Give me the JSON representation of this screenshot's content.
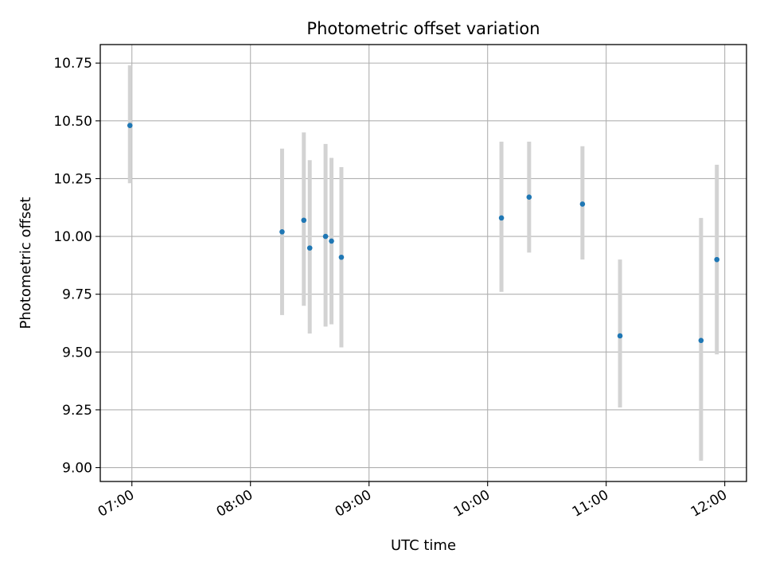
{
  "chart_data": {
    "type": "scatter",
    "title": "Photometric offset variation",
    "xlabel": "UTC time",
    "ylabel": "Photometric offset",
    "x_ticks": [
      "07:00",
      "08:00",
      "09:00",
      "10:00",
      "11:00",
      "12:00"
    ],
    "y_ticks": [
      "9.00",
      "9.25",
      "9.50",
      "9.75",
      "10.00",
      "10.25",
      "10.50",
      "10.75"
    ],
    "xlim": [
      "06:44",
      "12:11"
    ],
    "ylim": [
      8.94,
      10.83
    ],
    "grid": true,
    "x_tick_label_rotation": "30deg",
    "point_color": "#1f77b4",
    "errorbar_color": "#d3d3d3",
    "points": [
      {
        "time": "06:59",
        "offset": 10.48,
        "low": 10.23,
        "high": 10.74
      },
      {
        "time": "08:16",
        "offset": 10.02,
        "low": 9.66,
        "high": 10.38
      },
      {
        "time": "08:27",
        "offset": 10.07,
        "low": 9.7,
        "high": 10.45
      },
      {
        "time": "08:30",
        "offset": 9.95,
        "low": 9.58,
        "high": 10.33
      },
      {
        "time": "08:38",
        "offset": 10.0,
        "low": 9.61,
        "high": 10.4
      },
      {
        "time": "08:41",
        "offset": 9.98,
        "low": 9.62,
        "high": 10.34
      },
      {
        "time": "08:46",
        "offset": 9.91,
        "low": 9.52,
        "high": 10.3
      },
      {
        "time": "10:07",
        "offset": 10.08,
        "low": 9.76,
        "high": 10.41
      },
      {
        "time": "10:21",
        "offset": 10.17,
        "low": 9.93,
        "high": 10.41
      },
      {
        "time": "10:48",
        "offset": 10.14,
        "low": 9.9,
        "high": 10.39
      },
      {
        "time": "11:07",
        "offset": 9.57,
        "low": 9.26,
        "high": 9.9
      },
      {
        "time": "11:48",
        "offset": 9.55,
        "low": 9.03,
        "high": 10.08
      },
      {
        "time": "11:56",
        "offset": 9.9,
        "low": 9.49,
        "high": 10.31
      }
    ]
  }
}
